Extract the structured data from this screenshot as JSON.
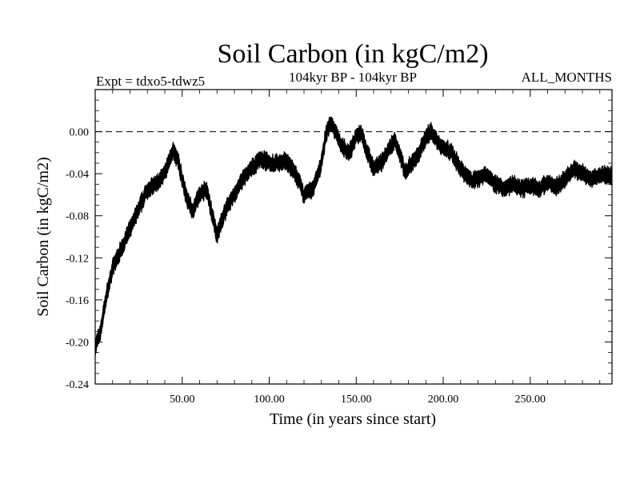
{
  "chart_data": {
    "type": "line",
    "title": "Soil Carbon (in kgC/m2)",
    "subtitle_left": "Expt = tdxo5-tdwz5",
    "subtitle_center": "104kyr BP - 104kyr BP",
    "subtitle_right": "ALL_MONTHS",
    "xlabel": "Time (in years since start)",
    "ylabel": "Soil Carbon (in kgC/m2)",
    "xlim": [
      0,
      297
    ],
    "ylim": [
      -0.24,
      0.04
    ],
    "xticks": [
      50,
      100,
      150,
      200,
      250
    ],
    "xtick_labels": [
      "50.00",
      "100.00",
      "150.00",
      "200.00",
      "250.00"
    ],
    "yticks": [
      0.0,
      -0.04,
      -0.08,
      -0.12,
      -0.16,
      -0.2,
      -0.24
    ],
    "ytick_labels": [
      "0.00",
      "-0.04",
      "-0.08",
      "-0.12",
      "-0.16",
      "-0.20",
      "-0.24"
    ],
    "reference_line": {
      "y": 0.0,
      "style": "dashed"
    },
    "grid": false,
    "series": [
      {
        "color": "#000000",
        "band_width": 0.008,
        "x": [
          0,
          3,
          6,
          10,
          14,
          18,
          22,
          26,
          30,
          35,
          40,
          43,
          45,
          48,
          52,
          56,
          60,
          64,
          68,
          70,
          72,
          76,
          80,
          85,
          90,
          95,
          100,
          105,
          110,
          115,
          120,
          125,
          130,
          133,
          135,
          138,
          142,
          146,
          150,
          153,
          156,
          160,
          164,
          168,
          172,
          175,
          178,
          182,
          186,
          190,
          193,
          196,
          200,
          205,
          210,
          215,
          220,
          225,
          230,
          235,
          240,
          245,
          250,
          255,
          260,
          265,
          270,
          275,
          280,
          285,
          290,
          297
        ],
        "y": [
          -0.205,
          -0.19,
          -0.16,
          -0.13,
          -0.115,
          -0.1,
          -0.085,
          -0.07,
          -0.055,
          -0.05,
          -0.04,
          -0.025,
          -0.018,
          -0.03,
          -0.06,
          -0.075,
          -0.06,
          -0.055,
          -0.085,
          -0.1,
          -0.088,
          -0.07,
          -0.06,
          -0.045,
          -0.035,
          -0.025,
          -0.03,
          -0.03,
          -0.028,
          -0.04,
          -0.06,
          -0.055,
          -0.03,
          0.0,
          0.008,
          0.0,
          -0.015,
          -0.02,
          -0.005,
          0.0,
          -0.018,
          -0.035,
          -0.03,
          -0.02,
          -0.008,
          -0.02,
          -0.038,
          -0.03,
          -0.022,
          -0.005,
          0.0,
          -0.008,
          -0.015,
          -0.02,
          -0.035,
          -0.045,
          -0.045,
          -0.04,
          -0.05,
          -0.055,
          -0.05,
          -0.055,
          -0.05,
          -0.055,
          -0.048,
          -0.052,
          -0.045,
          -0.035,
          -0.04,
          -0.045,
          -0.04,
          -0.042
        ]
      }
    ]
  }
}
